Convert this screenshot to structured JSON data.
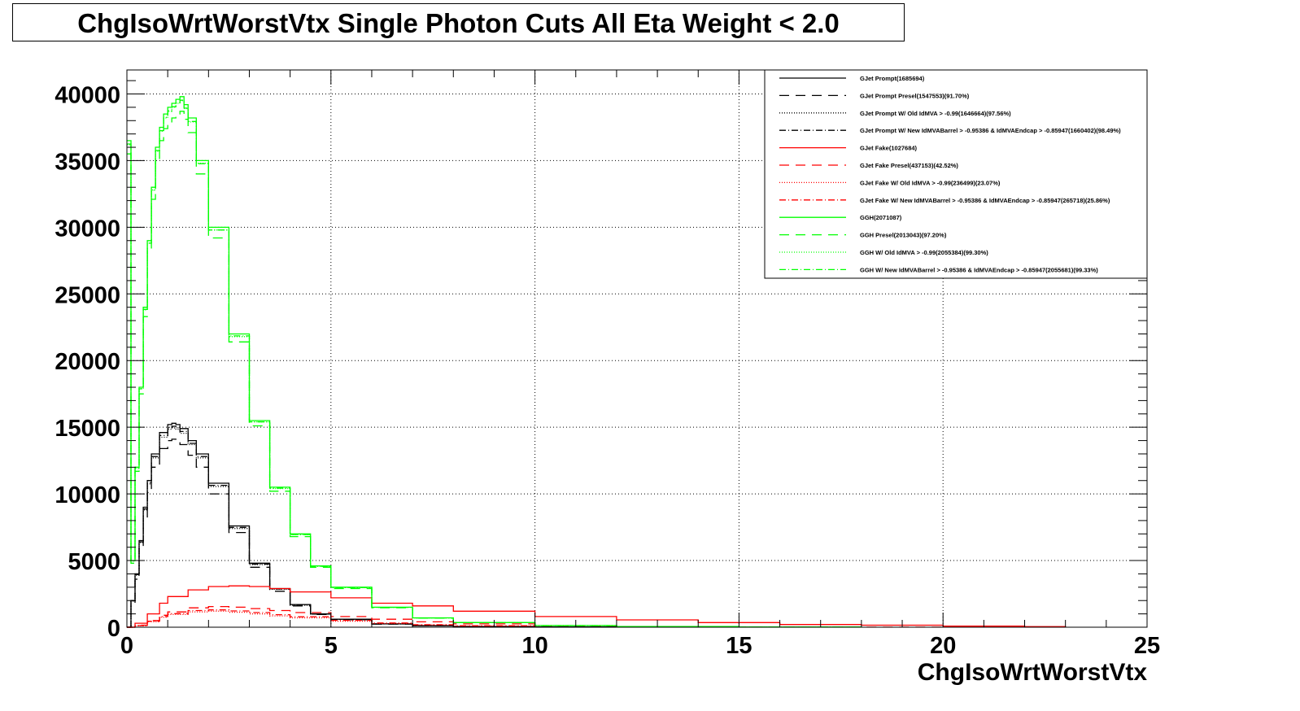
{
  "chart_data": {
    "type": "line",
    "title": "ChgIsoWrtWorstVtx Single Photon Cuts All Eta Weight < 2.0",
    "xlabel": "ChgIsoWrtWorstVtx",
    "ylabel": "",
    "xlim": [
      0,
      25
    ],
    "ylim": [
      0,
      40000
    ],
    "x_ticks": [
      0,
      5,
      10,
      15,
      20,
      25
    ],
    "y_ticks": [
      0,
      5000,
      10000,
      15000,
      20000,
      25000,
      30000,
      35000,
      40000
    ],
    "grid": true,
    "legend_position": "top-right",
    "series": [
      {
        "name": "GJet Prompt(1685694)",
        "color": "#000000",
        "style": "solid",
        "x": [
          0,
          0.1,
          0.2,
          0.3,
          0.4,
          0.5,
          0.6,
          0.8,
          1.0,
          1.1,
          1.2,
          1.3,
          1.5,
          1.7,
          2.0,
          2.5,
          3.0,
          3.5,
          4.0,
          4.5,
          5.0,
          6.0,
          7.0,
          8.0,
          10.0,
          12.0,
          15.0
        ],
        "y": [
          0,
          2000,
          4000,
          6500,
          9000,
          11000,
          13000,
          14600,
          15200,
          15300,
          15200,
          14900,
          14000,
          13000,
          10800,
          7600,
          4800,
          2900,
          1700,
          1000,
          600,
          250,
          110,
          50,
          20,
          10,
          5
        ]
      },
      {
        "name": "GJet Prompt Presel(1547553)(91.70%)",
        "color": "#000000",
        "style": "dashed",
        "x": [
          0,
          0.1,
          0.2,
          0.3,
          0.4,
          0.5,
          0.6,
          0.8,
          1.0,
          1.1,
          1.2,
          1.3,
          1.5,
          1.7,
          2.0,
          2.5,
          3.0,
          3.5,
          4.0,
          4.5,
          5.0,
          6.0,
          7.0,
          8.0,
          10.0,
          12.0,
          15.0
        ],
        "y": [
          0,
          1800,
          3600,
          6000,
          8200,
          10100,
          12000,
          13400,
          14000,
          14100,
          14000,
          13700,
          12900,
          12000,
          10000,
          7100,
          4500,
          2700,
          1600,
          950,
          560,
          230,
          100,
          45,
          18,
          9,
          4
        ]
      },
      {
        "name": "GJet Prompt W/ Old IdMVA > -0.99(1646664)(97.56%)",
        "color": "#000000",
        "style": "dotted",
        "x": [
          0,
          0.1,
          0.2,
          0.3,
          0.4,
          0.5,
          0.6,
          0.8,
          1.0,
          1.1,
          1.2,
          1.3,
          1.5,
          1.7,
          2.0,
          2.5,
          3.0,
          3.5,
          4.0,
          4.5,
          5.0,
          6.0,
          7.0,
          8.0,
          10.0,
          12.0,
          15.0
        ],
        "y": [
          0,
          1950,
          3900,
          6350,
          8800,
          10750,
          12700,
          14250,
          14850,
          14950,
          14850,
          14550,
          13700,
          12700,
          10550,
          7400,
          4700,
          2850,
          1650,
          980,
          590,
          245,
          108,
          49,
          19,
          10,
          5
        ]
      },
      {
        "name": "GJet Prompt W/ New IdMVABarrel > -0.95386 & IdMVAEndcap > -0.85947(1660402)(98.49%)",
        "color": "#000000",
        "style": "dashdot",
        "x": [
          0,
          0.1,
          0.2,
          0.3,
          0.4,
          0.5,
          0.6,
          0.8,
          1.0,
          1.1,
          1.2,
          1.3,
          1.5,
          1.7,
          2.0,
          2.5,
          3.0,
          3.5,
          4.0,
          4.5,
          5.0,
          6.0,
          7.0,
          8.0,
          10.0,
          12.0,
          15.0
        ],
        "y": [
          0,
          1970,
          3940,
          6400,
          8870,
          10850,
          12800,
          14380,
          14970,
          15070,
          14970,
          14680,
          13790,
          12800,
          10640,
          7490,
          4730,
          2860,
          1670,
          985,
          591,
          246,
          108,
          49,
          20,
          10,
          5
        ]
      },
      {
        "name": "GJet Fake(1027684)",
        "color": "#ff0000",
        "style": "solid",
        "x": [
          0,
          0.2,
          0.5,
          0.8,
          1.0,
          1.5,
          2.0,
          2.5,
          3.0,
          3.5,
          4.0,
          5.0,
          6.0,
          7.0,
          8.0,
          10.0,
          12.0,
          14.0,
          16.0,
          18.0,
          20.0,
          22.0,
          23.0
        ],
        "y": [
          0,
          300,
          1000,
          1800,
          2300,
          2800,
          3050,
          3100,
          3050,
          2900,
          2650,
          2200,
          1800,
          1600,
          1200,
          800,
          550,
          350,
          200,
          150,
          80,
          40,
          0
        ]
      },
      {
        "name": "GJet Fake Presel(437153)(42.52%)",
        "color": "#ff0000",
        "style": "dashed",
        "x": [
          0,
          0.2,
          0.5,
          0.8,
          1.0,
          1.5,
          2.0,
          2.5,
          3.0,
          3.5,
          4.0,
          5.0,
          6.0,
          7.0,
          8.0,
          10.0,
          12.0,
          14.0,
          16.0,
          18.0,
          20.0
        ],
        "y": [
          0,
          150,
          500,
          900,
          1150,
          1450,
          1550,
          1500,
          1400,
          1250,
          1100,
          800,
          600,
          400,
          250,
          100,
          50,
          20,
          10,
          5,
          0
        ]
      },
      {
        "name": "GJet Fake W/ Old IdMVA > -0.99(236499)(23.07%)",
        "color": "#ff0000",
        "style": "dotted",
        "x": [
          0,
          0.2,
          0.5,
          0.8,
          1.0,
          1.5,
          2.0,
          2.5,
          3.0,
          3.5,
          4.0,
          5.0,
          6.0,
          7.0,
          8.0,
          10.0
        ],
        "y": [
          0,
          100,
          400,
          750,
          950,
          1150,
          1200,
          1120,
          1000,
          850,
          700,
          450,
          280,
          170,
          100,
          30
        ]
      },
      {
        "name": "GJet Fake W/ New IdMVABarrel > -0.95386 & IdMVAEndcap > -0.85947(265718)(25.86%)",
        "color": "#ff0000",
        "style": "dashdot",
        "x": [
          0,
          0.2,
          0.5,
          0.8,
          1.0,
          1.5,
          2.0,
          2.5,
          3.0,
          3.5,
          4.0,
          5.0,
          6.0,
          7.0,
          8.0,
          10.0
        ],
        "y": [
          0,
          120,
          450,
          800,
          1020,
          1250,
          1300,
          1220,
          1100,
          940,
          780,
          510,
          320,
          190,
          110,
          35
        ]
      },
      {
        "name": "GGH(2071087)",
        "color": "#00ff00",
        "style": "solid",
        "x": [
          0,
          0.1,
          0.2,
          0.3,
          0.4,
          0.5,
          0.6,
          0.7,
          0.8,
          0.9,
          1.0,
          1.1,
          1.2,
          1.3,
          1.4,
          1.5,
          1.7,
          2.0,
          2.5,
          3.0,
          3.5,
          4.0,
          4.5,
          5.0,
          6.0,
          7.0,
          8.0,
          10.0,
          12.0,
          15.0,
          18.0
        ],
        "y": [
          36500,
          5000,
          12000,
          18000,
          24000,
          29000,
          33000,
          36000,
          37500,
          38500,
          39000,
          39300,
          39600,
          39800,
          39200,
          38200,
          35000,
          30000,
          22000,
          15500,
          10500,
          7000,
          4600,
          3000,
          1500,
          700,
          350,
          120,
          50,
          15,
          5
        ]
      },
      {
        "name": "GGH Presel(2013043)(97.20%)",
        "color": "#00ff00",
        "style": "dashed",
        "x": [
          0,
          0.1,
          0.2,
          0.3,
          0.4,
          0.5,
          0.6,
          0.7,
          0.8,
          0.9,
          1.0,
          1.1,
          1.2,
          1.3,
          1.4,
          1.5,
          1.7,
          2.0,
          2.5,
          3.0,
          3.5,
          4.0,
          4.5,
          5.0,
          6.0,
          7.0,
          8.0,
          10.0,
          12.0,
          15.0,
          18.0
        ],
        "y": [
          35500,
          4800,
          11700,
          17500,
          23300,
          28200,
          32100,
          35000,
          36500,
          37400,
          37900,
          38200,
          38500,
          38700,
          38100,
          37100,
          34000,
          29200,
          21400,
          15100,
          10200,
          6800,
          4500,
          2900,
          1460,
          680,
          340,
          117,
          49,
          15,
          5
        ]
      },
      {
        "name": "GGH W/ Old IdMVA > -0.99(2055384)(99.30%)",
        "color": "#00ff00",
        "style": "dotted",
        "x": [
          0,
          0.1,
          0.2,
          0.3,
          0.4,
          0.5,
          0.6,
          0.7,
          0.8,
          0.9,
          1.0,
          1.1,
          1.2,
          1.3,
          1.4,
          1.5,
          1.7,
          2.0,
          2.5,
          3.0,
          3.5,
          4.0,
          4.5,
          5.0,
          6.0,
          7.0,
          8.0,
          10.0,
          12.0,
          15.0,
          18.0
        ],
        "y": [
          36200,
          4960,
          11900,
          17900,
          23800,
          28800,
          32800,
          35700,
          37200,
          38200,
          38700,
          39000,
          39300,
          39500,
          38900,
          37900,
          34800,
          29800,
          21800,
          15400,
          10400,
          6950,
          4570,
          2980,
          1490,
          695,
          348,
          119,
          50,
          15,
          5
        ]
      },
      {
        "name": "GGH W/ New IdMVABarrel > -0.95386 & IdMVAEndcap > -0.85947(2055681)(99.33%)",
        "color": "#00ff00",
        "style": "dashdot",
        "x": [
          0,
          0.1,
          0.2,
          0.3,
          0.4,
          0.5,
          0.6,
          0.7,
          0.8,
          0.9,
          1.0,
          1.1,
          1.2,
          1.3,
          1.4,
          1.5,
          1.7,
          2.0,
          2.5,
          3.0,
          3.5,
          4.0,
          4.5,
          5.0,
          6.0,
          7.0,
          8.0,
          10.0,
          12.0,
          15.0,
          18.0
        ],
        "y": [
          36250,
          4965,
          11920,
          17880,
          23840,
          28810,
          32780,
          35760,
          37250,
          38240,
          38740,
          39040,
          39330,
          39530,
          38940,
          37940,
          34770,
          29800,
          21850,
          15400,
          10430,
          6950,
          4570,
          2980,
          1490,
          695,
          348,
          119,
          50,
          15,
          5
        ]
      }
    ]
  }
}
